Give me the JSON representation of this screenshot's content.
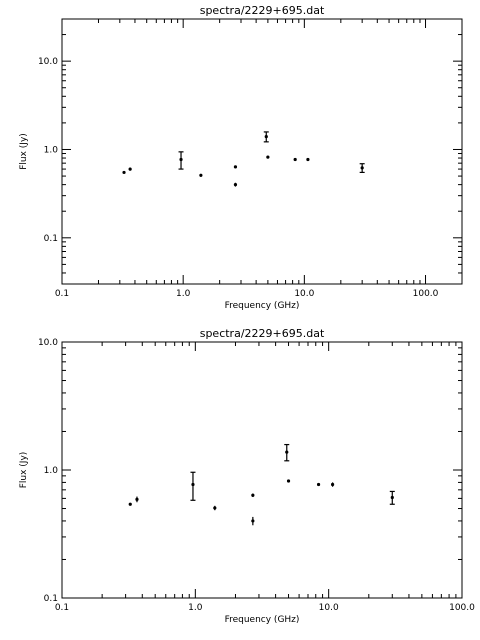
{
  "chart_data": [
    {
      "type": "scatter",
      "title": "spectra/2229+695.dat",
      "xlabel": "Frequency (GHz)",
      "ylabel": "Flux (Jy)",
      "xscale": "log",
      "yscale": "log",
      "xlim": [
        0.1,
        200
      ],
      "ylim": [
        0.03,
        30
      ],
      "grid": false,
      "x_ticklabels": [
        "0.1",
        "1.0",
        "10.0",
        "100.0"
      ],
      "y_ticklabels": [
        "0.1",
        "1.0",
        "10.0"
      ],
      "points": [
        {
          "x": 0.325,
          "y": 0.55,
          "err": 0.01
        },
        {
          "x": 0.365,
          "y": 0.6,
          "err": 0.025
        },
        {
          "x": 0.96,
          "y": 0.77,
          "err": 0.17
        },
        {
          "x": 1.4,
          "y": 0.51,
          "err": 0.02
        },
        {
          "x": 2.7,
          "y": 0.635,
          "err": 0.02
        },
        {
          "x": 2.7,
          "y": 0.4,
          "err": 0.02
        },
        {
          "x": 4.85,
          "y": 1.4,
          "err": 0.18
        },
        {
          "x": 5.0,
          "y": 0.82,
          "err": 0.02
        },
        {
          "x": 8.4,
          "y": 0.77,
          "err": 0.02
        },
        {
          "x": 10.7,
          "y": 0.77,
          "err": 0.03
        },
        {
          "x": 30.0,
          "y": 0.62,
          "err": 0.07
        }
      ]
    },
    {
      "type": "scatter",
      "title": "spectra/2229+695.dat",
      "xlabel": "Frequency (GHz)",
      "ylabel": "Flux (Jy)",
      "xscale": "log",
      "yscale": "log",
      "xlim": [
        0.1,
        100
      ],
      "ylim": [
        0.1,
        10
      ],
      "grid": false,
      "x_ticklabels": [
        "0.1",
        "1.0",
        "10.0",
        "100.0"
      ],
      "y_ticklabels": [
        "0.1",
        "1.0",
        "10.0"
      ],
      "points": [
        {
          "x": 0.325,
          "y": 0.54,
          "err": 0.01
        },
        {
          "x": 0.365,
          "y": 0.59,
          "err": 0.03
        },
        {
          "x": 0.96,
          "y": 0.77,
          "err": 0.19
        },
        {
          "x": 1.4,
          "y": 0.505,
          "err": 0.02
        },
        {
          "x": 2.7,
          "y": 0.635,
          "err": 0.02
        },
        {
          "x": 2.7,
          "y": 0.4,
          "err": 0.03
        },
        {
          "x": 4.85,
          "y": 1.38,
          "err": 0.2
        },
        {
          "x": 5.0,
          "y": 0.82,
          "err": 0.02
        },
        {
          "x": 8.4,
          "y": 0.77,
          "err": 0.02
        },
        {
          "x": 10.7,
          "y": 0.77,
          "err": 0.03
        },
        {
          "x": 30.0,
          "y": 0.61,
          "err": 0.07
        }
      ]
    }
  ]
}
